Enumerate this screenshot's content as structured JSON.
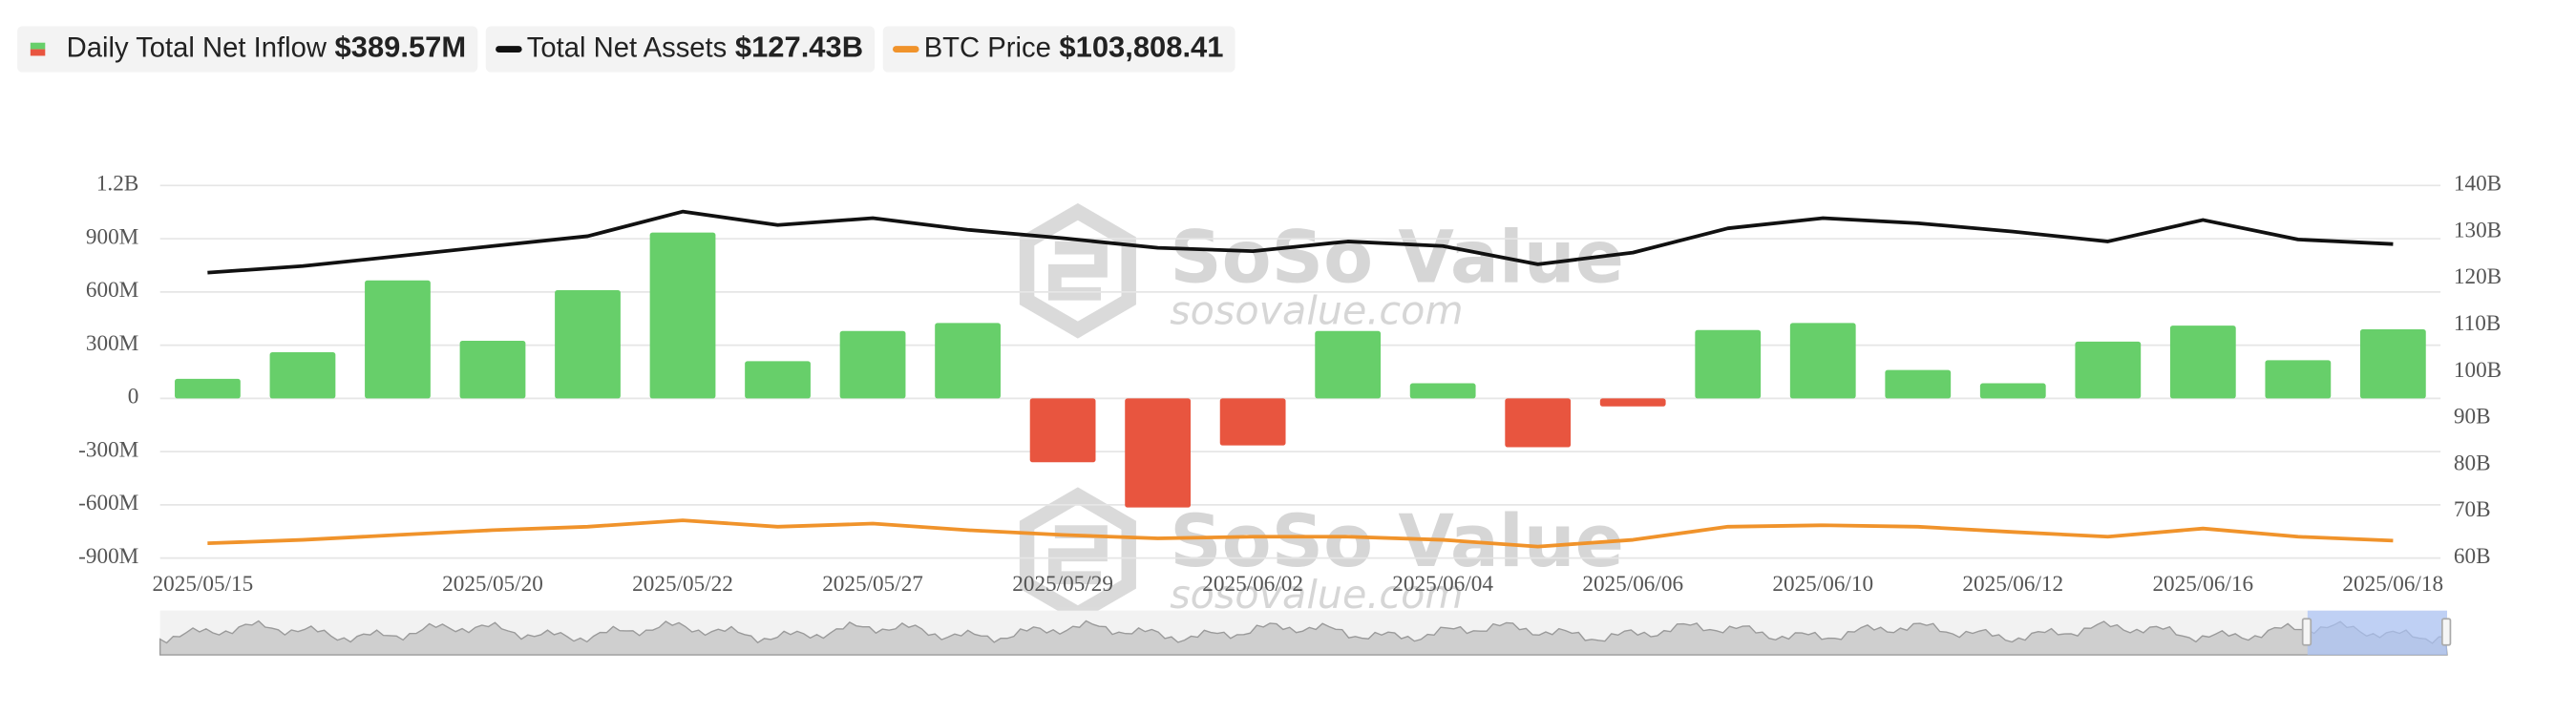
{
  "chart_data": {
    "type": "bar-line",
    "categories": [
      "2025/05/15",
      null,
      null,
      "2025/05/20",
      null,
      "2025/05/22",
      null,
      "2025/05/27",
      null,
      "2025/05/29",
      null,
      "2025/06/02",
      null,
      "2025/06/04",
      null,
      "2025/06/06",
      null,
      "2025/06/10",
      null,
      "2025/06/12",
      null,
      "2025/06/16",
      null,
      "2025/06/18"
    ],
    "series": [
      {
        "name": "Daily Total Net Inflow",
        "latest_label": "$389.57M",
        "type": "bar",
        "color": "#67cf6a",
        "negative_color": "#e8553f",
        "axis": "y",
        "values": [
          110000000,
          260000000,
          665000000,
          325000000,
          610000000,
          935000000,
          210000000,
          380000000,
          425000000,
          -360000000,
          -615000000,
          -265000000,
          380000000,
          85000000,
          -275000000,
          -45000000,
          385000000,
          425000000,
          160000000,
          85000000,
          320000000,
          410000000,
          215000000,
          389570000
        ]
      },
      {
        "name": "Total Net Assets",
        "latest_label": "$127.43B",
        "type": "line",
        "color": "#111111",
        "axis": "y2",
        "values": [
          121300000000,
          122700000000,
          124800000000,
          127000000000,
          129100000000,
          134400000000,
          131500000000,
          133000000000,
          130500000000,
          128700000000,
          126600000000,
          125900000000,
          128000000000,
          127000000000,
          123100000000,
          125600000000,
          130800000000,
          133000000000,
          131900000000,
          130100000000,
          128000000000,
          132600000000,
          128400000000,
          127430000000
        ]
      },
      {
        "name": "BTC Price",
        "latest_label": "$103,808.41",
        "type": "line",
        "color": "#f0932b",
        "axis": "hidden",
        "values": [
          102800,
          104100,
          106000,
          107900,
          109200,
          111700,
          109200,
          110400,
          107900,
          106000,
          104700,
          105300,
          105300,
          104100,
          101500,
          104100,
          109200,
          109800,
          109200,
          107200,
          105300,
          108500,
          105300,
          103808.41
        ]
      }
    ],
    "ylim": [
      -900000000,
      1200000000
    ],
    "yticks": [
      {
        "value": -900000000,
        "label": "-900M"
      },
      {
        "value": -600000000,
        "label": "-600M"
      },
      {
        "value": -300000000,
        "label": "-300M"
      },
      0,
      {
        "value": 300000000,
        "label": "300M"
      },
      {
        "value": 600000000,
        "label": "600M"
      },
      {
        "value": 900000000,
        "label": "900M"
      },
      {
        "value": 1200000000,
        "label": "1.2B"
      }
    ],
    "y2lim": [
      60000000000,
      140000000000
    ],
    "y2ticks": [
      {
        "value": 60000000000,
        "label": "60B"
      },
      {
        "value": 70000000000,
        "label": "70B"
      },
      {
        "value": 80000000000,
        "label": "80B"
      },
      {
        "value": 90000000000,
        "label": "90B"
      },
      {
        "value": 100000000000,
        "label": "100B"
      },
      {
        "value": 110000000000,
        "label": "110B"
      },
      {
        "value": 120000000000,
        "label": "120B"
      },
      {
        "value": 130000000000,
        "label": "130B"
      },
      {
        "value": 140000000000,
        "label": "140B"
      }
    ],
    "grid": true,
    "watermark": {
      "brand": "SoSo Value",
      "url": "sosovalue.com"
    }
  }
}
